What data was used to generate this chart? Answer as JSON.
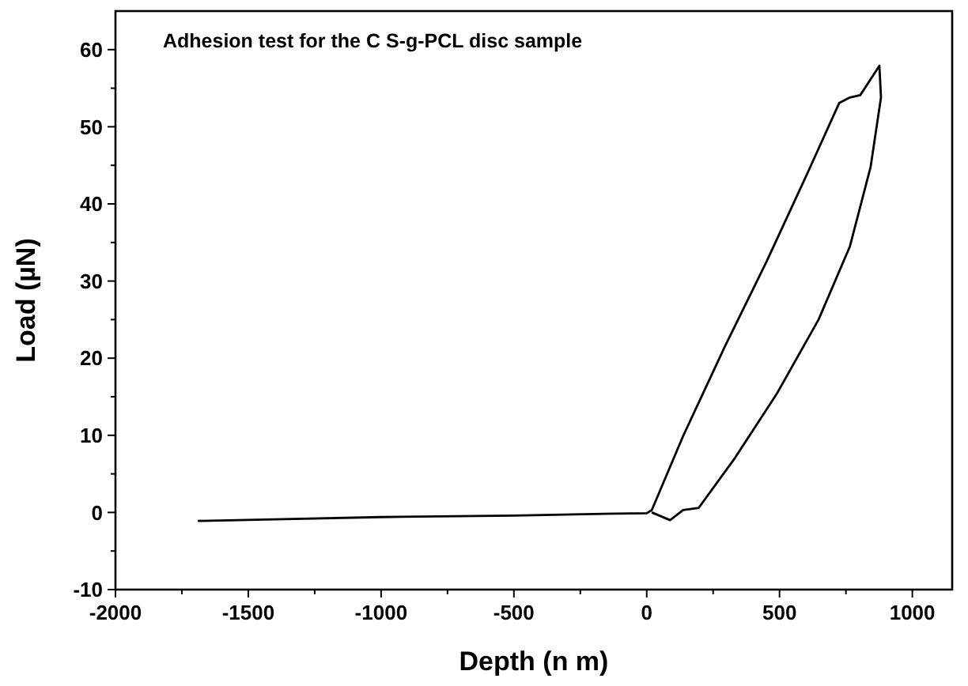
{
  "chart_data": {
    "type": "line",
    "title": "Adhesion test for the C S-g-PCL disc sample",
    "xlabel": "Depth (n m)",
    "ylabel": "Load (µN)",
    "xlim": [
      -2000,
      1150
    ],
    "ylim": [
      -10,
      65
    ],
    "xticks": [
      -2000,
      {
        "value": -1750,
        "label": null
      },
      -1500,
      {
        "value": -1250,
        "label": null
      },
      -1000,
      {
        "value": -750,
        "label": null
      },
      -500,
      {
        "value": -250,
        "label": null
      },
      0,
      {
        "value": 250,
        "label": null
      },
      500,
      {
        "value": 750,
        "label": null
      },
      1000
    ],
    "yticks": [
      -10,
      {
        "value": -5,
        "label": null
      },
      0,
      {
        "value": 5,
        "label": null
      },
      10,
      {
        "value": 15,
        "label": null
      },
      20,
      {
        "value": 25,
        "label": null
      },
      30,
      {
        "value": 35,
        "label": null
      },
      40,
      {
        "value": 45,
        "label": null
      },
      50,
      {
        "value": 55,
        "label": null
      },
      60
    ],
    "grid": false,
    "marker": "none",
    "line_style": "solid",
    "series": [
      {
        "color": "#000000",
        "x": [
          -1690,
          -1400,
          -1000,
          -500,
          -200,
          0,
          19,
          137,
          294,
          451,
          608,
          725,
          765,
          804,
          876,
          882,
          843,
          765,
          647,
          490,
          333,
          196,
          137,
          88,
          19
        ],
        "values": [
          -1.1,
          -0.9,
          -0.6,
          -0.4,
          -0.2,
          -0.1,
          0.3,
          9.9,
          21.5,
          32.5,
          44.2,
          53.1,
          53.8,
          54.1,
          57.9,
          53.8,
          44.8,
          34.5,
          25,
          15.4,
          7.1,
          0.6,
          0.3,
          -1.0,
          0
        ]
      }
    ]
  }
}
